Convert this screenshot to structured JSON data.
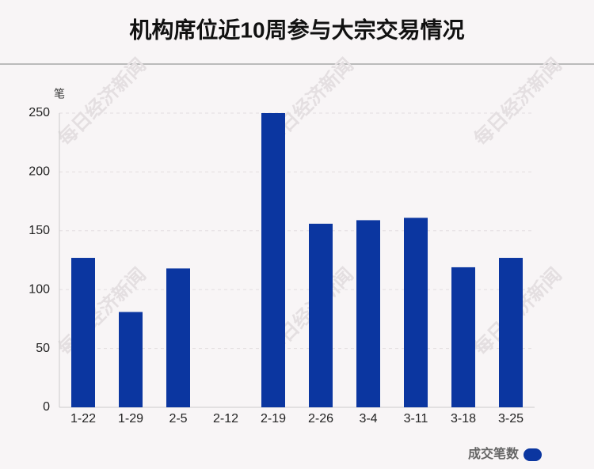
{
  "chart_data": {
    "type": "bar",
    "title": "机构席位近10周参与大宗交易情况",
    "y_label": "笔",
    "watermark": "每日经济新闻",
    "categories": [
      "1-22",
      "1-29",
      "2-5",
      "2-12",
      "2-19",
      "2-26",
      "3-4",
      "3-11",
      "3-18",
      "3-25"
    ],
    "series": [
      {
        "name": "成交笔数",
        "color": "#0b36a0",
        "values": [
          127,
          81,
          118,
          0,
          250,
          156,
          159,
          161,
          119,
          127
        ]
      }
    ],
    "ylim": [
      0,
      250
    ],
    "yticks": [
      0,
      50,
      100,
      150,
      200,
      250
    ],
    "grid": true,
    "legend": "bottom-right"
  }
}
